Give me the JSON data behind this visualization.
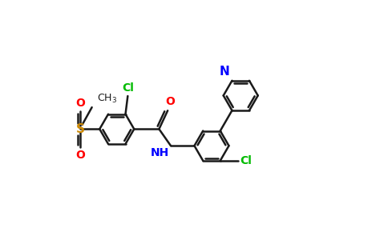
{
  "background_color": "#ffffff",
  "bond_color": "#1a1a1a",
  "bond_width": 1.8,
  "dbo": 0.055,
  "ring_r": 0.38,
  "atom_colors": {
    "Cl": "#00bb00",
    "O": "#ff0000",
    "N": "#0000ff",
    "S": "#cc8800",
    "C": "#1a1a1a"
  },
  "fs": 10,
  "fig_width": 4.84,
  "fig_height": 3.0,
  "dpi": 100,
  "xlim": [
    0.0,
    8.5
  ],
  "ylim": [
    0.5,
    5.5
  ]
}
